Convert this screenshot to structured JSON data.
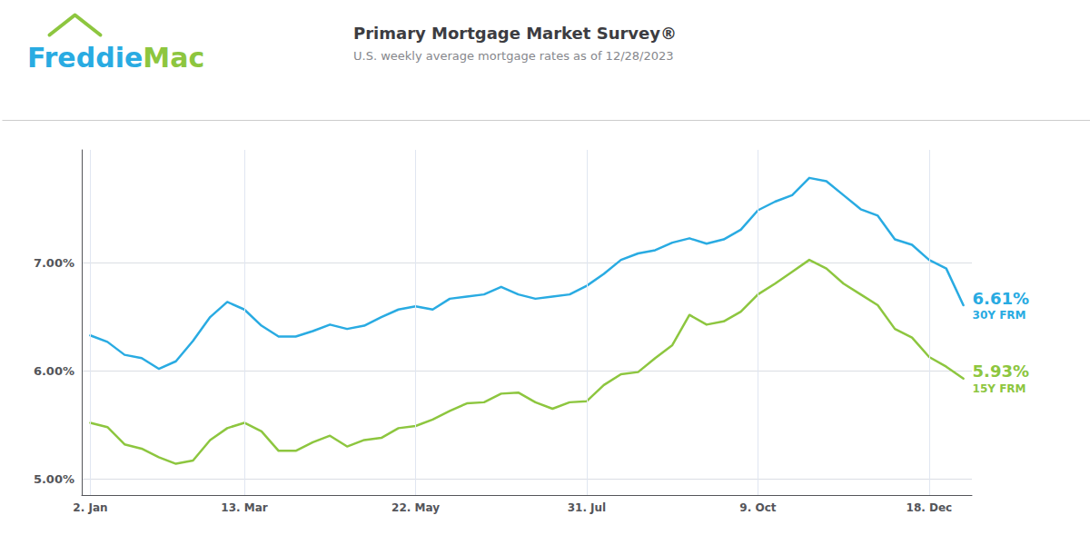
{
  "chart_data": {
    "type": "line",
    "title": "Primary Mortgage Market Survey®",
    "subtitle": "U.S. weekly average mortgage rates as of 12/28/2023",
    "categories": [
      "2. Jan",
      null,
      null,
      null,
      null,
      null,
      null,
      null,
      null,
      "13. Mar",
      null,
      null,
      null,
      null,
      null,
      null,
      null,
      null,
      null,
      "22. May",
      null,
      null,
      null,
      null,
      null,
      null,
      null,
      null,
      null,
      "31. Jul",
      null,
      null,
      null,
      null,
      null,
      null,
      null,
      null,
      null,
      "9. Oct",
      null,
      null,
      null,
      null,
      null,
      null,
      null,
      null,
      null,
      "18. Dec",
      null,
      null
    ],
    "series": [
      {
        "color": "#29ABE2",
        "values": [
          6.33,
          6.27,
          6.15,
          6.12,
          6.02,
          6.09,
          6.28,
          6.5,
          6.64,
          6.57,
          6.42,
          6.32,
          6.32,
          6.37,
          6.43,
          6.39,
          6.42,
          6.5,
          6.57,
          6.6,
          6.57,
          6.67,
          6.69,
          6.71,
          6.78,
          6.71,
          6.67,
          6.69,
          6.71,
          6.79,
          6.9,
          7.03,
          7.09,
          7.12,
          7.19,
          7.23,
          7.18,
          7.22,
          7.31,
          7.49,
          7.57,
          7.63,
          7.79,
          7.76,
          7.63,
          7.5,
          7.44,
          7.22,
          7.17,
          7.03,
          6.95,
          6.61
        ]
      },
      {
        "color": "#8DC63F",
        "values": [
          5.52,
          5.48,
          5.32,
          5.28,
          5.2,
          5.14,
          5.17,
          5.36,
          5.47,
          5.52,
          5.44,
          5.26,
          5.26,
          5.34,
          5.4,
          5.3,
          5.36,
          5.38,
          5.47,
          5.49,
          5.55,
          5.63,
          5.7,
          5.71,
          5.79,
          5.8,
          5.71,
          5.65,
          5.71,
          5.72,
          5.87,
          5.97,
          5.99,
          6.12,
          6.24,
          6.52,
          6.43,
          6.46,
          6.55,
          6.71,
          6.81,
          6.92,
          7.03,
          6.95,
          6.81,
          6.71,
          6.61,
          6.39,
          6.31,
          6.13,
          6.04,
          5.93
        ]
      }
    ],
    "ylim": [
      4.85,
      8.05
    ],
    "yticks": [
      {
        "value": 5.0,
        "label": "5.00%"
      },
      {
        "value": 6.0,
        "label": "6.00%"
      },
      {
        "value": 7.0,
        "label": "7.00%"
      }
    ],
    "grid": true,
    "annotations": [
      {
        "text": "Freddie",
        "color": "#29ABE2"
      },
      {
        "text": "Mac",
        "color": "#8DC63F"
      },
      {
        "text": "6.61%",
        "series": 0
      },
      {
        "text": "30Y FRM",
        "series": 0
      },
      {
        "text": "5.93%",
        "series": 1
      },
      {
        "text": "15Y FRM",
        "series": 1
      }
    ]
  }
}
